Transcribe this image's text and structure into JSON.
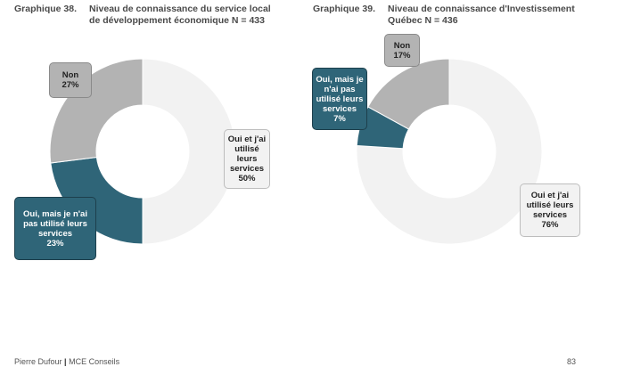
{
  "chart_data": [
    {
      "type": "pie",
      "figure_label": "Graphique 38.",
      "title": "Niveau de connaissance du service local de développement économique N = 433",
      "slices": [
        {
          "label": "Oui et j'ai utilisé leurs services",
          "value": 50,
          "value_label": "50%",
          "color": "#f2f2f2"
        },
        {
          "label": "Oui, mais je n'ai pas utilisé leurs services",
          "value": 23,
          "value_label": "23%",
          "color": "#2f6578"
        },
        {
          "label": "Non",
          "value": 27,
          "value_label": "27%",
          "color": "#b3b3b3"
        }
      ]
    },
    {
      "type": "pie",
      "figure_label": "Graphique 39.",
      "title": "Niveau de connaissance d'Investissement Québec N = 436",
      "slices": [
        {
          "label": "Oui et j'ai utilisé leurs services",
          "value": 76,
          "value_label": "76%",
          "color": "#f2f2f2"
        },
        {
          "label": "Oui, mais je n'ai pas utilisé leurs services",
          "value": 7,
          "value_label": "7%",
          "color": "#2f6578"
        },
        {
          "label": "Non",
          "value": 17,
          "value_label": "17%",
          "color": "#b3b3b3"
        }
      ]
    }
  ],
  "footer": {
    "author": "Pierre Dufour",
    "separator": "|",
    "org": "MCE Conseils",
    "page_number": "83"
  }
}
